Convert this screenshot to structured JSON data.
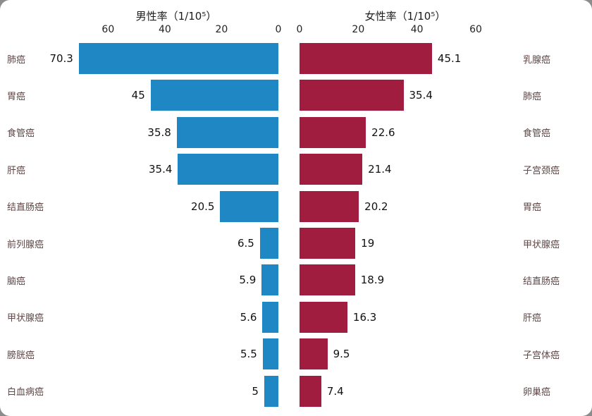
{
  "chart_data": {
    "type": "bar",
    "variant": "bidirectional-horizontal",
    "title_left": "男性率（1/10⁵）",
    "title_right": "女性率（1/10⁵）",
    "axis": {
      "max": 72,
      "ticks": [
        0,
        20,
        40,
        60
      ],
      "left_tick_labels": [
        "60",
        "40",
        "20",
        "0"
      ],
      "right_tick_labels": [
        "0",
        "20",
        "40",
        "60"
      ]
    },
    "male": {
      "name": "男性率",
      "color": "#1f87c4",
      "series": [
        {
          "label": "肺癌",
          "value": 70.3,
          "display": "70.3"
        },
        {
          "label": "胃癌",
          "value": 45,
          "display": "45"
        },
        {
          "label": "食管癌",
          "value": 35.8,
          "display": "35.8"
        },
        {
          "label": "肝癌",
          "value": 35.4,
          "display": "35.4"
        },
        {
          "label": "结直肠癌",
          "value": 20.5,
          "display": "20.5"
        },
        {
          "label": "前列腺癌",
          "value": 6.5,
          "display": "6.5"
        },
        {
          "label": "脑癌",
          "value": 5.9,
          "display": "5.9"
        },
        {
          "label": "甲状腺癌",
          "value": 5.6,
          "display": "5.6"
        },
        {
          "label": "膀胱癌",
          "value": 5.5,
          "display": "5.5"
        },
        {
          "label": "白血病癌",
          "value": 5,
          "display": "5"
        }
      ]
    },
    "female": {
      "name": "女性率",
      "color": "#a01d3f",
      "series": [
        {
          "label": "乳腺癌",
          "value": 45.1,
          "display": "45.1"
        },
        {
          "label": "肺癌",
          "value": 35.4,
          "display": "35.4"
        },
        {
          "label": "食管癌",
          "value": 22.6,
          "display": "22.6"
        },
        {
          "label": "子宫颈癌",
          "value": 21.4,
          "display": "21.4"
        },
        {
          "label": "胃癌",
          "value": 20.2,
          "display": "20.2"
        },
        {
          "label": "甲状腺癌",
          "value": 19,
          "display": "19"
        },
        {
          "label": "结直肠癌",
          "value": 18.9,
          "display": "18.9"
        },
        {
          "label": "肝癌",
          "value": 16.3,
          "display": "16.3"
        },
        {
          "label": "子宫体癌",
          "value": 9.5,
          "display": "9.5"
        },
        {
          "label": "卵巢癌",
          "value": 7.4,
          "display": "7.4"
        }
      ]
    },
    "layout": {
      "legend": "none",
      "grid": "off",
      "background": "#ffffff"
    }
  }
}
